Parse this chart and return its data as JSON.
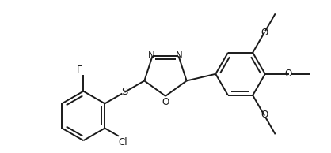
{
  "background": "#ffffff",
  "line_color": "#1a1a1a",
  "line_width": 1.4,
  "font_size": 8.5,
  "fig_width": 4.18,
  "fig_height": 1.94,
  "dpi": 100,
  "xlim": [
    -0.95,
    1.65
  ],
  "ylim": [
    -0.05,
    1.05
  ]
}
